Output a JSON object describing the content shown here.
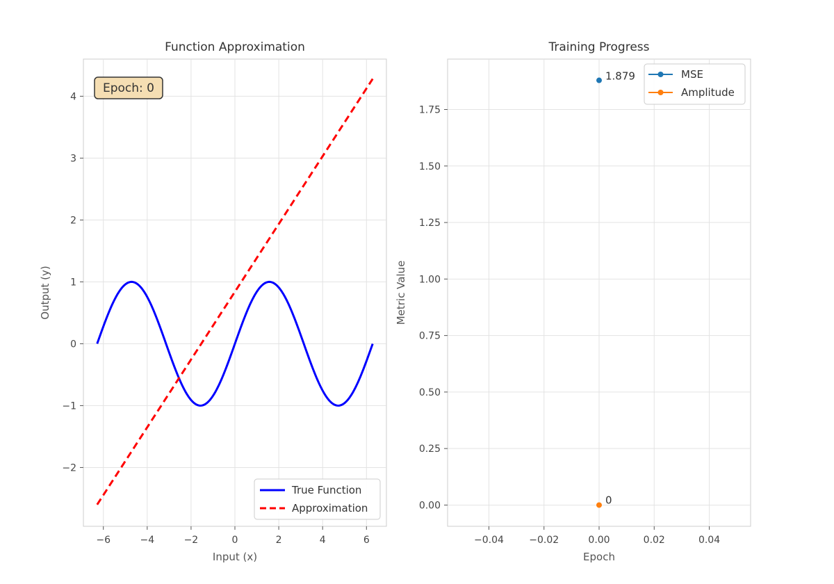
{
  "chart_data": [
    {
      "type": "line",
      "title": "Function Approximation",
      "xlabel": "Input (x)",
      "ylabel": "Output (y)",
      "xlim": [
        -6.91,
        6.91
      ],
      "ylim": [
        -2.95,
        4.6
      ],
      "xticks": [
        -6,
        -4,
        -2,
        0,
        2,
        4,
        6
      ],
      "xtick_labels": [
        "−6",
        "−4",
        "−2",
        "0",
        "2",
        "4",
        "6"
      ],
      "yticks": [
        -2,
        -1,
        0,
        1,
        2,
        3,
        4
      ],
      "ytick_labels": [
        "−2",
        "−1",
        "0",
        "1",
        "2",
        "3",
        "4"
      ],
      "grid": true,
      "annotation": "Epoch: 0",
      "legend_position": "lower-right",
      "series": [
        {
          "name": "True Function",
          "function": "sin(x)",
          "x_range": [
            -6.283,
            6.283
          ],
          "color": "#0000ff",
          "style": "solid"
        },
        {
          "name": "Approximation",
          "function": "linear",
          "x": [
            -6.283,
            6.283
          ],
          "y": [
            -2.6,
            4.28
          ],
          "color": "#ff0000",
          "style": "dashed"
        }
      ]
    },
    {
      "type": "scatter",
      "title": "Training Progress",
      "xlabel": "Epoch",
      "ylabel": "Metric Value",
      "xlim": [
        -0.055,
        0.055
      ],
      "ylim": [
        -0.094,
        1.973
      ],
      "xticks": [
        -0.04,
        -0.02,
        0,
        0.02,
        0.04
      ],
      "xtick_labels": [
        "−0.04",
        "−0.02",
        "0.00",
        "0.02",
        "0.04"
      ],
      "yticks": [
        0,
        0.25,
        0.5,
        0.75,
        1.0,
        1.25,
        1.5,
        1.75
      ],
      "ytick_labels": [
        "0.00",
        "0.25",
        "0.50",
        "0.75",
        "1.00",
        "1.25",
        "1.50",
        "1.75"
      ],
      "grid": true,
      "legend_position": "top-right",
      "series": [
        {
          "name": "MSE",
          "x": [
            0
          ],
          "y": [
            1.879
          ],
          "label": "1.879",
          "color": "#1f77b4"
        },
        {
          "name": "Amplitude",
          "x": [
            0
          ],
          "y": [
            0
          ],
          "label": "0",
          "color": "#ff7f0e"
        }
      ]
    }
  ]
}
